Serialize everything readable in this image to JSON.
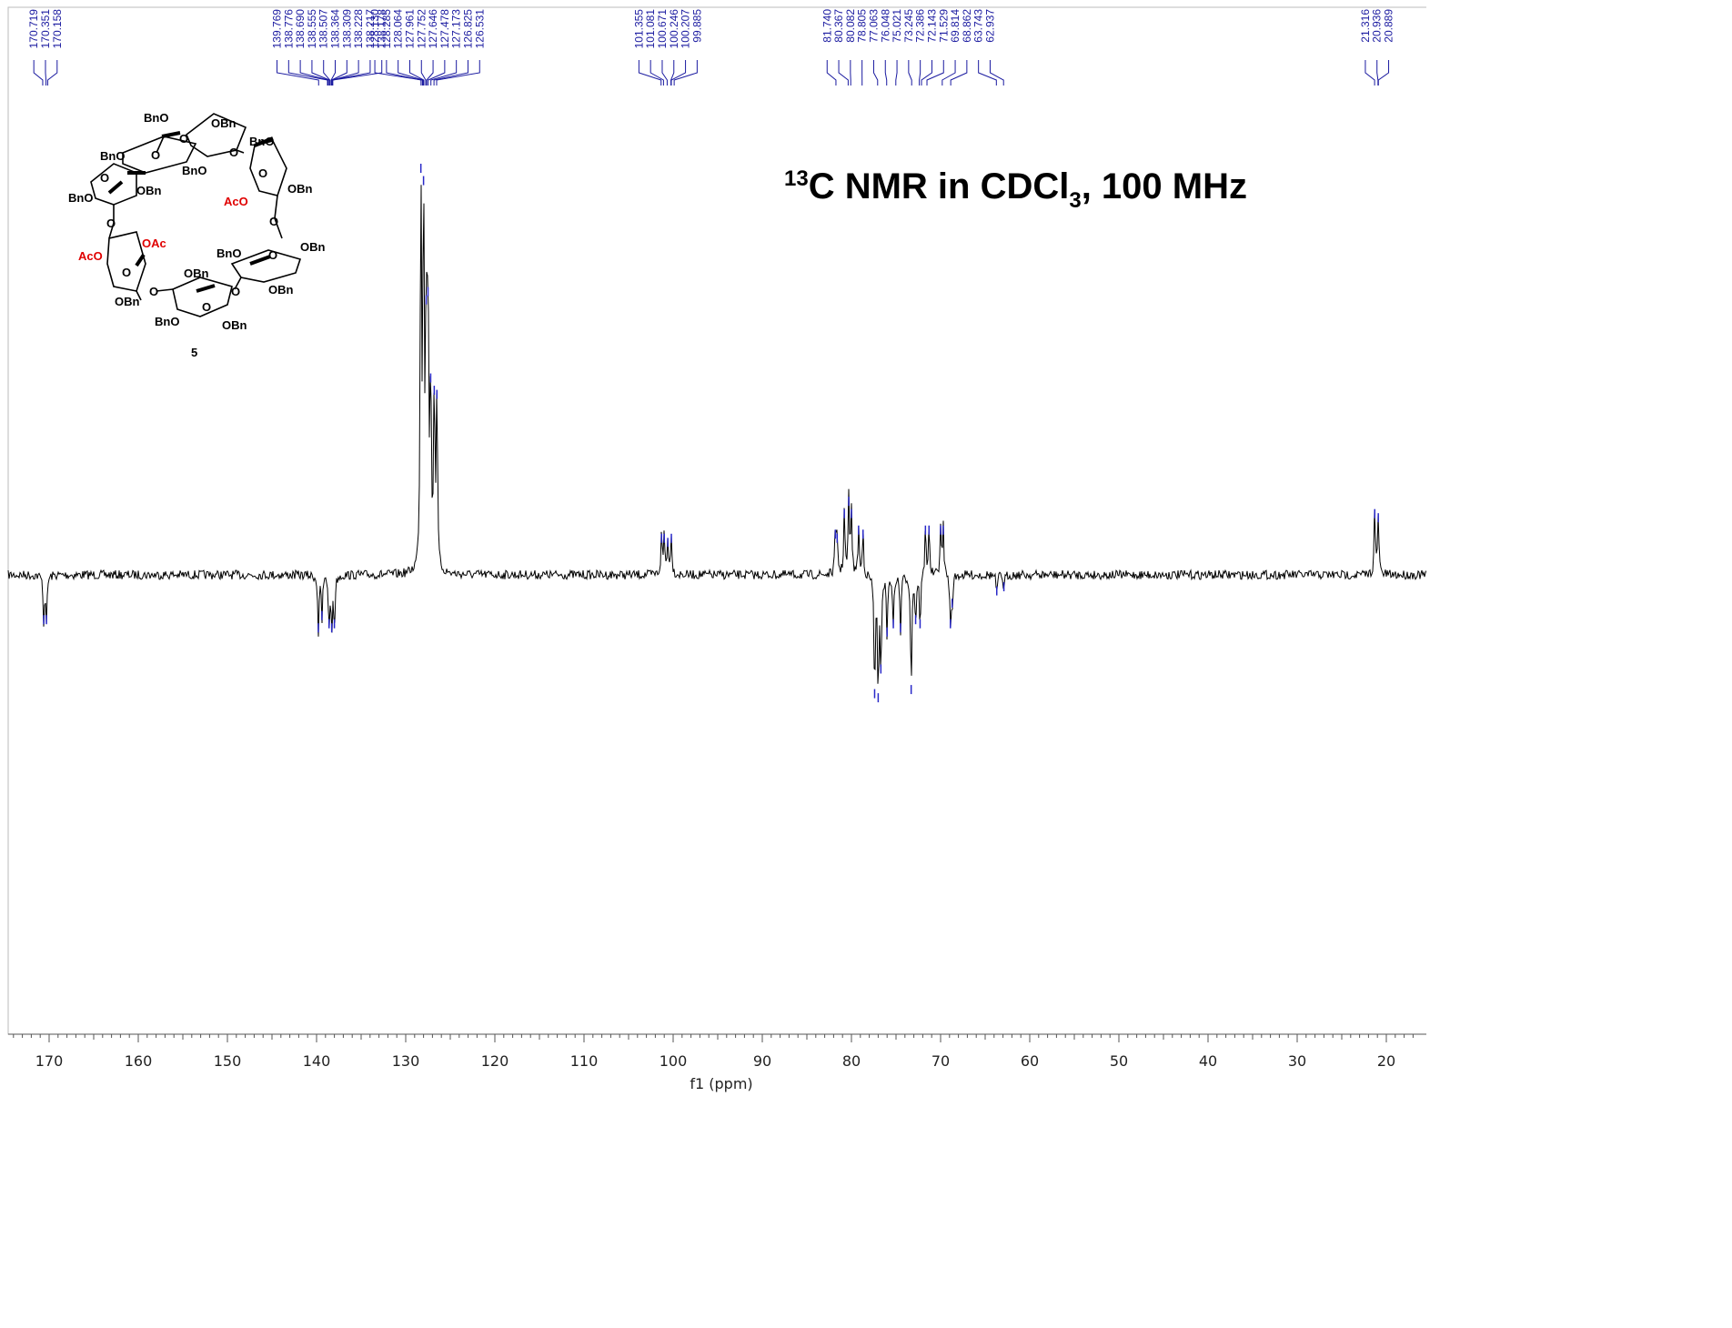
{
  "chart_data": {
    "type": "line",
    "title": {
      "sup": "13",
      "main": "C NMR in CDCl",
      "sub": "3",
      "tail": ", 100 MHz"
    },
    "xlabel": "f1 (ppm)",
    "xlim": [
      175,
      17
    ],
    "x_reversed": true,
    "x_ticks": [
      170,
      160,
      150,
      140,
      130,
      120,
      110,
      100,
      90,
      80,
      70,
      60,
      50,
      40,
      30,
      20
    ],
    "grid": false,
    "baseline_noise": true,
    "peak_labels": [
      {
        "text": "170.719",
        "ppm": 170.719
      },
      {
        "text": "170.351",
        "ppm": 170.351
      },
      {
        "text": "170.158",
        "ppm": 170.158
      },
      {
        "text": "139.769",
        "ppm": 139.769
      },
      {
        "text": "138.776",
        "ppm": 138.776
      },
      {
        "text": "138.690",
        "ppm": 138.69
      },
      {
        "text": "138.555",
        "ppm": 138.555
      },
      {
        "text": "138.507",
        "ppm": 138.507
      },
      {
        "text": "138.364",
        "ppm": 138.364
      },
      {
        "text": "138.309",
        "ppm": 138.309
      },
      {
        "text": "138.228",
        "ppm": 138.228
      },
      {
        "text": "138.217",
        "ppm": 138.217
      },
      {
        "text": "138.178",
        "ppm": 138.178
      },
      {
        "text": "128.130",
        "ppm": 128.13
      },
      {
        "text": "128.285",
        "ppm": 128.285
      },
      {
        "text": "128.064",
        "ppm": 128.064
      },
      {
        "text": "127.961",
        "ppm": 127.961
      },
      {
        "text": "127.752",
        "ppm": 127.752
      },
      {
        "text": "127.646",
        "ppm": 127.646
      },
      {
        "text": "127.478",
        "ppm": 127.478
      },
      {
        "text": "127.173",
        "ppm": 127.173
      },
      {
        "text": "126.825",
        "ppm": 126.825
      },
      {
        "text": "126.531",
        "ppm": 126.531
      },
      {
        "text": "101.355",
        "ppm": 101.355
      },
      {
        "text": "101.081",
        "ppm": 101.081
      },
      {
        "text": "100.671",
        "ppm": 100.671
      },
      {
        "text": "100.246",
        "ppm": 100.246
      },
      {
        "text": "100.207",
        "ppm": 100.207
      },
      {
        "text": "99.885",
        "ppm": 99.885
      },
      {
        "text": "81.740",
        "ppm": 81.74
      },
      {
        "text": "80.367",
        "ppm": 80.367
      },
      {
        "text": "80.082",
        "ppm": 80.082
      },
      {
        "text": "78.805",
        "ppm": 78.805
      },
      {
        "text": "77.063",
        "ppm": 77.063
      },
      {
        "text": "76.048",
        "ppm": 76.048
      },
      {
        "text": "75.021",
        "ppm": 75.021
      },
      {
        "text": "73.245",
        "ppm": 73.245
      },
      {
        "text": "72.386",
        "ppm": 72.386
      },
      {
        "text": "72.143",
        "ppm": 72.143
      },
      {
        "text": "71.529",
        "ppm": 71.529
      },
      {
        "text": "69.814",
        "ppm": 69.814
      },
      {
        "text": "68.862",
        "ppm": 68.862
      },
      {
        "text": "63.743",
        "ppm": 63.743
      },
      {
        "text": "62.937",
        "ppm": 62.937
      },
      {
        "text": "21.316",
        "ppm": 21.316
      },
      {
        "text": "20.936",
        "ppm": 20.936
      },
      {
        "text": "20.889",
        "ppm": 20.889
      }
    ],
    "peaks": [
      {
        "ppm": 170.6,
        "intensity": -0.12
      },
      {
        "ppm": 170.3,
        "intensity": -0.12
      },
      {
        "ppm": 139.8,
        "intensity": -0.14
      },
      {
        "ppm": 139.4,
        "intensity": -0.11
      },
      {
        "ppm": 138.6,
        "intensity": -0.13
      },
      {
        "ppm": 138.3,
        "intensity": -0.14
      },
      {
        "ppm": 138.0,
        "intensity": -0.13
      },
      {
        "ppm": 128.3,
        "intensity": 1.0
      },
      {
        "ppm": 128.0,
        "intensity": 0.97
      },
      {
        "ppm": 127.7,
        "intensity": 0.68
      },
      {
        "ppm": 127.5,
        "intensity": 0.7
      },
      {
        "ppm": 127.2,
        "intensity": 0.49
      },
      {
        "ppm": 126.8,
        "intensity": 0.46
      },
      {
        "ppm": 126.5,
        "intensity": 0.45
      },
      {
        "ppm": 101.3,
        "intensity": 0.1
      },
      {
        "ppm": 101.0,
        "intensity": 0.1
      },
      {
        "ppm": 100.6,
        "intensity": 0.09
      },
      {
        "ppm": 100.2,
        "intensity": 0.1
      },
      {
        "ppm": 81.8,
        "intensity": 0.11
      },
      {
        "ppm": 81.6,
        "intensity": 0.1
      },
      {
        "ppm": 80.8,
        "intensity": 0.16
      },
      {
        "ppm": 80.3,
        "intensity": 0.19
      },
      {
        "ppm": 80.0,
        "intensity": 0.16
      },
      {
        "ppm": 79.2,
        "intensity": 0.12
      },
      {
        "ppm": 78.7,
        "intensity": 0.11
      },
      {
        "ppm": 77.4,
        "intensity": -0.3
      },
      {
        "ppm": 77.0,
        "intensity": -0.31
      },
      {
        "ppm": 76.7,
        "intensity": -0.24
      },
      {
        "ppm": 76.0,
        "intensity": -0.15
      },
      {
        "ppm": 75.3,
        "intensity": -0.13
      },
      {
        "ppm": 74.5,
        "intensity": -0.14
      },
      {
        "ppm": 73.3,
        "intensity": -0.29
      },
      {
        "ppm": 72.8,
        "intensity": -0.12
      },
      {
        "ppm": 72.3,
        "intensity": -0.13
      },
      {
        "ppm": 71.7,
        "intensity": 0.12
      },
      {
        "ppm": 71.3,
        "intensity": 0.12
      },
      {
        "ppm": 70.0,
        "intensity": 0.12
      },
      {
        "ppm": 69.7,
        "intensity": 0.12
      },
      {
        "ppm": 68.9,
        "intensity": -0.13
      },
      {
        "ppm": 68.7,
        "intensity": -0.08
      },
      {
        "ppm": 63.7,
        "intensity": -0.05
      },
      {
        "ppm": 62.9,
        "intensity": -0.04
      },
      {
        "ppm": 21.3,
        "intensity": 0.16
      },
      {
        "ppm": 20.9,
        "intensity": 0.15
      }
    ]
  },
  "structure": {
    "labels": {
      "bno": "BnO",
      "obn": "OBn",
      "aco": "AcO",
      "oac": "OAc",
      "o": "O"
    },
    "compound_number": "5"
  },
  "colors": {
    "spectrum": "#000000",
    "peak_tips": "#2828c8",
    "peak_label": "#1a1aa0",
    "acetate_label": "#e00000",
    "axis": "#555555",
    "frame": "#bbbbbb"
  }
}
